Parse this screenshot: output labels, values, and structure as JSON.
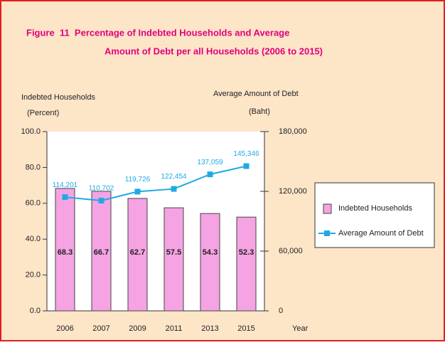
{
  "chart_data": {
    "type": "bar",
    "title": [
      "Figure  11  Percentage of Indebted Households and Average",
      "Amount of Debt per all Households (2006 to 2015)"
    ],
    "y_label": [
      "Indebted Households",
      "(Percent)"
    ],
    "y2_label": [
      "Average Amount of Debt",
      "(Baht)"
    ],
    "x_label": "Year",
    "categories": [
      "2006",
      "2007",
      "2009",
      "2011",
      "2013",
      "2015"
    ],
    "series": [
      {
        "name": "Indebted Households",
        "type": "bar",
        "color": "#f5a3e3",
        "values": [
          68.3,
          66.7,
          62.7,
          57.5,
          54.3,
          52.3
        ]
      },
      {
        "name": "Average Amount of Debt",
        "type": "line",
        "axis": "y2",
        "color": "#1fa9e6",
        "values": [
          114201,
          110702,
          119726,
          122454,
          137059,
          145346
        ],
        "value_labels": [
          "114,201",
          "110,702",
          "119,726",
          "122,454",
          "137,059",
          "145,346"
        ]
      }
    ],
    "ylim": [
      0,
      100
    ],
    "yticks": [
      {
        "value": 0,
        "label": "0.0"
      },
      {
        "value": 20,
        "label": "20.0"
      },
      {
        "value": 40,
        "label": "40.0"
      },
      {
        "value": 60,
        "label": "60.0"
      },
      {
        "value": 80,
        "label": "80.0"
      },
      {
        "value": 100,
        "label": "100.0"
      }
    ],
    "y2lim": [
      0,
      180000
    ],
    "y2ticks": [
      0,
      {
        "value": 60000,
        "label": "60,000"
      },
      {
        "value": 120000,
        "label": "120,000"
      },
      {
        "value": 180000,
        "label": "180,000"
      }
    ],
    "legend": "right"
  }
}
